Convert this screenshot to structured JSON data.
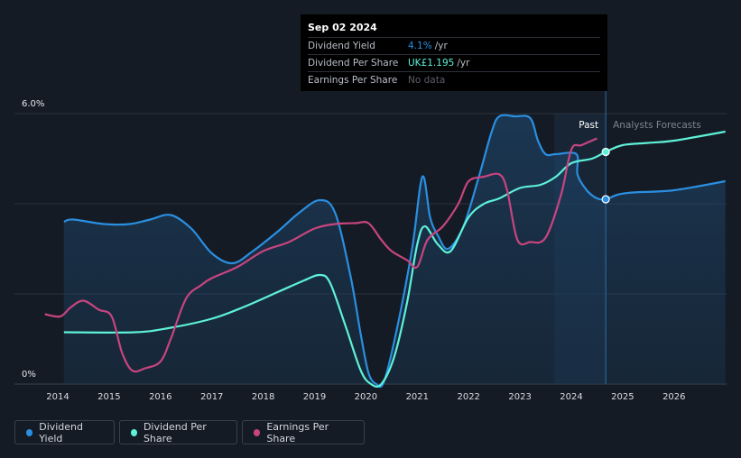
{
  "tooltip": {
    "date": "Sep 02 2024",
    "rows": [
      {
        "label": "Dividend Yield",
        "value": "4.1%",
        "unit": "/yr",
        "color": "#2a8fe0"
      },
      {
        "label": "Dividend Per Share",
        "value": "UK£1.195",
        "unit": "/yr",
        "color": "#5ef1d9"
      },
      {
        "label": "Earnings Per Share",
        "value": "No data",
        "unit": "",
        "color": "#5a5f68"
      }
    ]
  },
  "legend": [
    {
      "label": "Dividend Yield",
      "color": "#2a8fe0"
    },
    {
      "label": "Dividend Per Share",
      "color": "#5ef1d9"
    },
    {
      "label": "Earnings Per Share",
      "color": "#c7457f"
    }
  ],
  "chart_data": {
    "type": "line",
    "y_axis_labels": [
      "6.0%",
      "0%"
    ],
    "ylim": [
      0,
      6
    ],
    "xlim": [
      2013.7,
      2027
    ],
    "x_ticks": [
      2014,
      2015,
      2016,
      2017,
      2018,
      2019,
      2020,
      2021,
      2022,
      2023,
      2024,
      2025,
      2026
    ],
    "regions": {
      "past_label": "Past",
      "forecast_label": "Analysts Forecasts",
      "past_start": 2023.67,
      "divider": 2024.67
    },
    "grid": true,
    "series": [
      {
        "name": "Dividend Yield",
        "color": "#2a8fe0",
        "filled": true,
        "points": [
          [
            2014.12,
            3.6
          ],
          [
            2014.3,
            3.65
          ],
          [
            2014.9,
            3.55
          ],
          [
            2015.4,
            3.55
          ],
          [
            2015.8,
            3.65
          ],
          [
            2016.2,
            3.75
          ],
          [
            2016.6,
            3.45
          ],
          [
            2017.0,
            2.9
          ],
          [
            2017.4,
            2.68
          ],
          [
            2017.8,
            2.95
          ],
          [
            2018.3,
            3.4
          ],
          [
            2018.7,
            3.8
          ],
          [
            2019.1,
            4.08
          ],
          [
            2019.4,
            3.8
          ],
          [
            2019.7,
            2.4
          ],
          [
            2019.9,
            1.1
          ],
          [
            2020.05,
            0.25
          ],
          [
            2020.2,
            0.0
          ],
          [
            2020.35,
            0.05
          ],
          [
            2020.6,
            1.2
          ],
          [
            2020.9,
            3.0
          ],
          [
            2021.1,
            4.6
          ],
          [
            2021.25,
            3.7
          ],
          [
            2021.4,
            3.3
          ],
          [
            2021.6,
            3.0
          ],
          [
            2021.9,
            3.5
          ],
          [
            2022.2,
            4.6
          ],
          [
            2022.45,
            5.6
          ],
          [
            2022.6,
            5.95
          ],
          [
            2022.9,
            5.95
          ],
          [
            2023.2,
            5.9
          ],
          [
            2023.35,
            5.4
          ],
          [
            2023.5,
            5.1
          ],
          [
            2023.7,
            5.1
          ],
          [
            2024.1,
            5.1
          ],
          [
            2024.12,
            4.65
          ],
          [
            2024.3,
            4.3
          ],
          [
            2024.5,
            4.12
          ],
          [
            2024.67,
            4.1
          ],
          [
            2024.9,
            4.2
          ],
          [
            2025.2,
            4.25
          ],
          [
            2026.0,
            4.3
          ],
          [
            2027.0,
            4.5
          ]
        ]
      },
      {
        "name": "Dividend Per Share",
        "color": "#5ef1d9",
        "filled": false,
        "points": [
          [
            2014.12,
            1.15
          ],
          [
            2015.5,
            1.15
          ],
          [
            2016.2,
            1.25
          ],
          [
            2017.0,
            1.45
          ],
          [
            2017.6,
            1.7
          ],
          [
            2018.3,
            2.05
          ],
          [
            2018.8,
            2.3
          ],
          [
            2019.1,
            2.42
          ],
          [
            2019.3,
            2.25
          ],
          [
            2019.6,
            1.3
          ],
          [
            2019.9,
            0.3
          ],
          [
            2020.1,
            0.0
          ],
          [
            2020.3,
            0.0
          ],
          [
            2020.55,
            0.6
          ],
          [
            2020.8,
            1.8
          ],
          [
            2021.0,
            3.1
          ],
          [
            2021.15,
            3.5
          ],
          [
            2021.4,
            3.1
          ],
          [
            2021.65,
            2.95
          ],
          [
            2022.0,
            3.7
          ],
          [
            2022.3,
            4.0
          ],
          [
            2022.6,
            4.12
          ],
          [
            2023.0,
            4.35
          ],
          [
            2023.4,
            4.42
          ],
          [
            2023.7,
            4.6
          ],
          [
            2024.0,
            4.9
          ],
          [
            2024.4,
            5.0
          ],
          [
            2024.67,
            5.15
          ],
          [
            2025.0,
            5.3
          ],
          [
            2025.5,
            5.35
          ],
          [
            2026.0,
            5.4
          ],
          [
            2027.0,
            5.6
          ]
        ]
      },
      {
        "name": "Earnings Per Share",
        "color": "#c7457f",
        "filled": false,
        "points": [
          [
            2013.75,
            1.55
          ],
          [
            2014.05,
            1.5
          ],
          [
            2014.25,
            1.7
          ],
          [
            2014.5,
            1.85
          ],
          [
            2014.8,
            1.65
          ],
          [
            2015.05,
            1.5
          ],
          [
            2015.25,
            0.7
          ],
          [
            2015.45,
            0.3
          ],
          [
            2015.7,
            0.35
          ],
          [
            2016.0,
            0.5
          ],
          [
            2016.2,
            1.0
          ],
          [
            2016.5,
            1.9
          ],
          [
            2016.8,
            2.2
          ],
          [
            2017.0,
            2.35
          ],
          [
            2017.5,
            2.6
          ],
          [
            2018.0,
            2.95
          ],
          [
            2018.5,
            3.15
          ],
          [
            2019.0,
            3.45
          ],
          [
            2019.4,
            3.55
          ],
          [
            2019.8,
            3.57
          ],
          [
            2020.05,
            3.57
          ],
          [
            2020.3,
            3.2
          ],
          [
            2020.5,
            2.95
          ],
          [
            2020.8,
            2.75
          ],
          [
            2021.0,
            2.6
          ],
          [
            2021.2,
            3.2
          ],
          [
            2021.5,
            3.5
          ],
          [
            2021.8,
            4.0
          ],
          [
            2022.0,
            4.5
          ],
          [
            2022.3,
            4.6
          ],
          [
            2022.6,
            4.65
          ],
          [
            2022.75,
            4.3
          ],
          [
            2022.95,
            3.2
          ],
          [
            2023.2,
            3.15
          ],
          [
            2023.5,
            3.25
          ],
          [
            2023.8,
            4.2
          ],
          [
            2024.0,
            5.2
          ],
          [
            2024.2,
            5.3
          ],
          [
            2024.5,
            5.45
          ]
        ]
      }
    ],
    "highlight_points": [
      {
        "series": "Dividend Yield",
        "x": 2024.67,
        "y": 4.1
      },
      {
        "series": "Dividend Per Share",
        "x": 2024.67,
        "y": 5.15
      }
    ]
  }
}
